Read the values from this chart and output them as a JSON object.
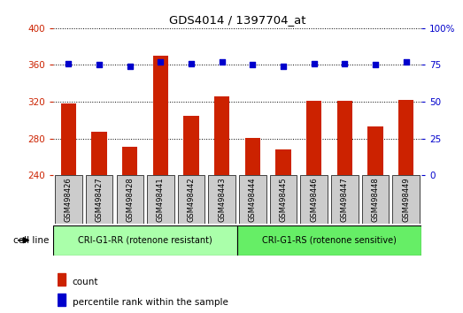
{
  "title": "GDS4014 / 1397704_at",
  "categories": [
    "GSM498426",
    "GSM498427",
    "GSM498428",
    "GSM498441",
    "GSM498442",
    "GSM498443",
    "GSM498444",
    "GSM498445",
    "GSM498446",
    "GSM498447",
    "GSM498448",
    "GSM498449"
  ],
  "bar_values": [
    318,
    287,
    271,
    370,
    305,
    326,
    281,
    268,
    321,
    321,
    293,
    322
  ],
  "percentile_values": [
    76,
    75,
    74,
    77,
    76,
    77,
    75,
    74,
    76,
    76,
    75,
    77
  ],
  "bar_color": "#cc2200",
  "dot_color": "#0000cc",
  "ylim_left": [
    240,
    400
  ],
  "ylim_right": [
    0,
    100
  ],
  "yticks_left": [
    240,
    280,
    320,
    360,
    400
  ],
  "yticks_right": [
    0,
    25,
    50,
    75,
    100
  ],
  "group1_label": "CRI-G1-RR (rotenone resistant)",
  "group2_label": "CRI-G1-RS (rotenone sensitive)",
  "group1_count": 6,
  "group2_count": 6,
  "cell_line_label": "cell line",
  "legend_count_label": "count",
  "legend_percentile_label": "percentile rank within the sample",
  "group1_color": "#aaffaa",
  "group2_color": "#66ee66",
  "bar_bottom": 240,
  "tick_color_left": "#cc2200",
  "tick_color_right": "#0000cc",
  "label_box_color": "#cccccc"
}
